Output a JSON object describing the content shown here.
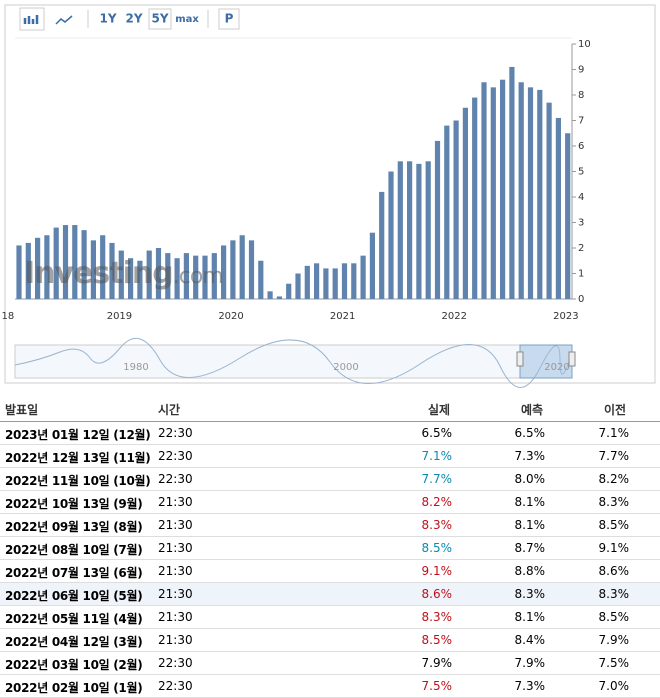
{
  "toolbar": {
    "ranges": [
      "1Y",
      "2Y",
      "5Y",
      "max"
    ],
    "active_range": 2,
    "extra": "P"
  },
  "chart_data": {
    "type": "bar",
    "watermark": "Investing",
    "watermark_suffix": ".com",
    "xlabels": [
      "18",
      "2019",
      "2020",
      "2021",
      "2022",
      "2023"
    ],
    "values": [
      2.1,
      2.2,
      2.4,
      2.5,
      2.8,
      2.9,
      2.9,
      2.7,
      2.3,
      2.5,
      2.2,
      1.9,
      1.6,
      1.5,
      1.9,
      2.0,
      1.8,
      1.6,
      1.8,
      1.7,
      1.7,
      1.8,
      2.1,
      2.3,
      2.5,
      2.3,
      1.5,
      0.3,
      0.1,
      0.6,
      1.0,
      1.3,
      1.4,
      1.2,
      1.2,
      1.4,
      1.4,
      1.7,
      2.6,
      4.2,
      5.0,
      5.4,
      5.4,
      5.3,
      5.4,
      6.2,
      6.8,
      7.0,
      7.5,
      7.9,
      8.5,
      8.3,
      8.6,
      9.1,
      8.5,
      8.3,
      8.2,
      7.7,
      7.1,
      6.5
    ],
    "color": "#5f83ad",
    "ylim": [
      0,
      10
    ],
    "yticks": [
      0,
      1,
      2,
      3,
      4,
      5,
      6,
      7,
      8,
      9,
      10
    ],
    "grid": false,
    "navigator_labels": [
      "1980",
      "2000",
      "2020"
    ]
  },
  "table": {
    "header": [
      "발표일",
      "시간",
      "실제",
      "예측",
      "이전"
    ],
    "highlight_row": 7,
    "rows": [
      [
        "2023년 01월 12일 (12월)",
        "22:30",
        "6.5%",
        "6.5%",
        "7.1%"
      ],
      [
        "2022년 12월 13일 (11월)",
        "22:30",
        "7.1%",
        "7.3%",
        "7.7%"
      ],
      [
        "2022년 11월 10일 (10월)",
        "22:30",
        "7.7%",
        "8.0%",
        "8.2%"
      ],
      [
        "2022년 10월 13일 (9월)",
        "21:30",
        "8.2%",
        "8.1%",
        "8.3%"
      ],
      [
        "2022년 09월 13일 (8월)",
        "21:30",
        "8.3%",
        "8.1%",
        "8.5%"
      ],
      [
        "2022년 08월 10일 (7월)",
        "21:30",
        "8.5%",
        "8.7%",
        "9.1%"
      ],
      [
        "2022년 07월 13일 (6월)",
        "21:30",
        "9.1%",
        "8.8%",
        "8.6%"
      ],
      [
        "2022년 06월 10일 (5월)",
        "21:30",
        "8.6%",
        "8.3%",
        "8.3%"
      ],
      [
        "2022년 05월 11일 (4월)",
        "21:30",
        "8.3%",
        "8.1%",
        "8.5%"
      ],
      [
        "2022년 04월 12일 (3월)",
        "21:30",
        "8.5%",
        "8.4%",
        "7.9%"
      ],
      [
        "2022년 03월 10일 (2월)",
        "22:30",
        "7.9%",
        "7.9%",
        "7.5%"
      ],
      [
        "2022년 02월 10일 (1월)",
        "22:30",
        "7.5%",
        "7.3%",
        "7.0%"
      ]
    ],
    "actual_colors": [
      "#000000",
      "#0a8ab0",
      "#0a8ab0",
      "#c0101a",
      "#c0101a",
      "#0a8ab0",
      "#c0101a",
      "#c0101a",
      "#c0101a",
      "#c0101a",
      "#000000",
      "#c0101a"
    ]
  }
}
